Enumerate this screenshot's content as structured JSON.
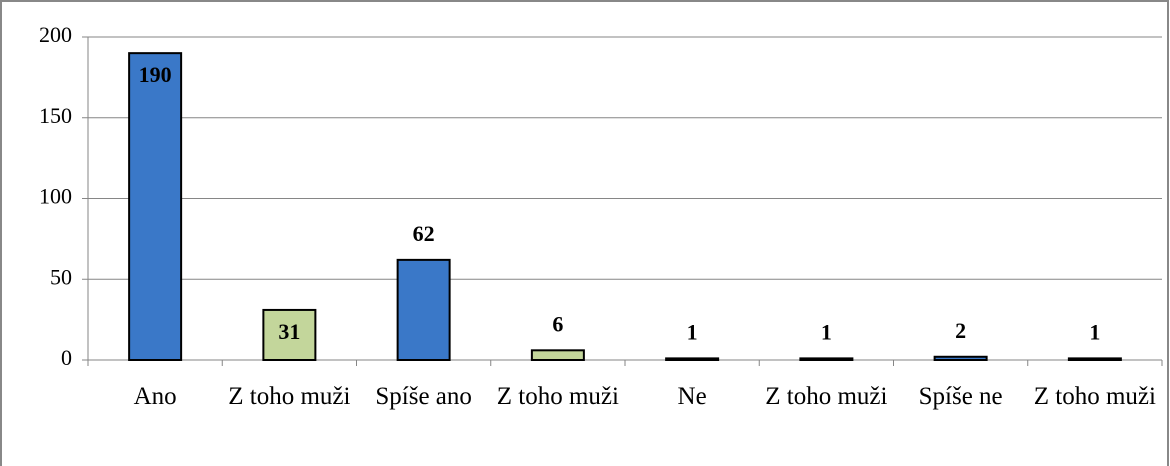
{
  "chart_data": {
    "type": "bar",
    "categories": [
      "Ano",
      "Z toho muži",
      "Spíše ano",
      "Z toho muži",
      "Ne",
      "Z toho muži",
      "Spíše ne",
      "Z toho muži"
    ],
    "values": [
      190,
      31,
      62,
      6,
      1,
      1,
      2,
      1
    ],
    "colors": [
      "#3a78c8",
      "#c3d69b",
      "#3a78c8",
      "#c3d69b",
      "#3a78c8",
      "#c3d69b",
      "#3a78c8",
      "#c3d69b"
    ],
    "label_position": [
      "inside",
      "inside",
      "outside",
      "outside",
      "outside",
      "outside",
      "outside",
      "outside"
    ],
    "ylim": [
      0,
      200
    ],
    "yticks": [
      0,
      50,
      100,
      150,
      200
    ],
    "grid": true
  }
}
